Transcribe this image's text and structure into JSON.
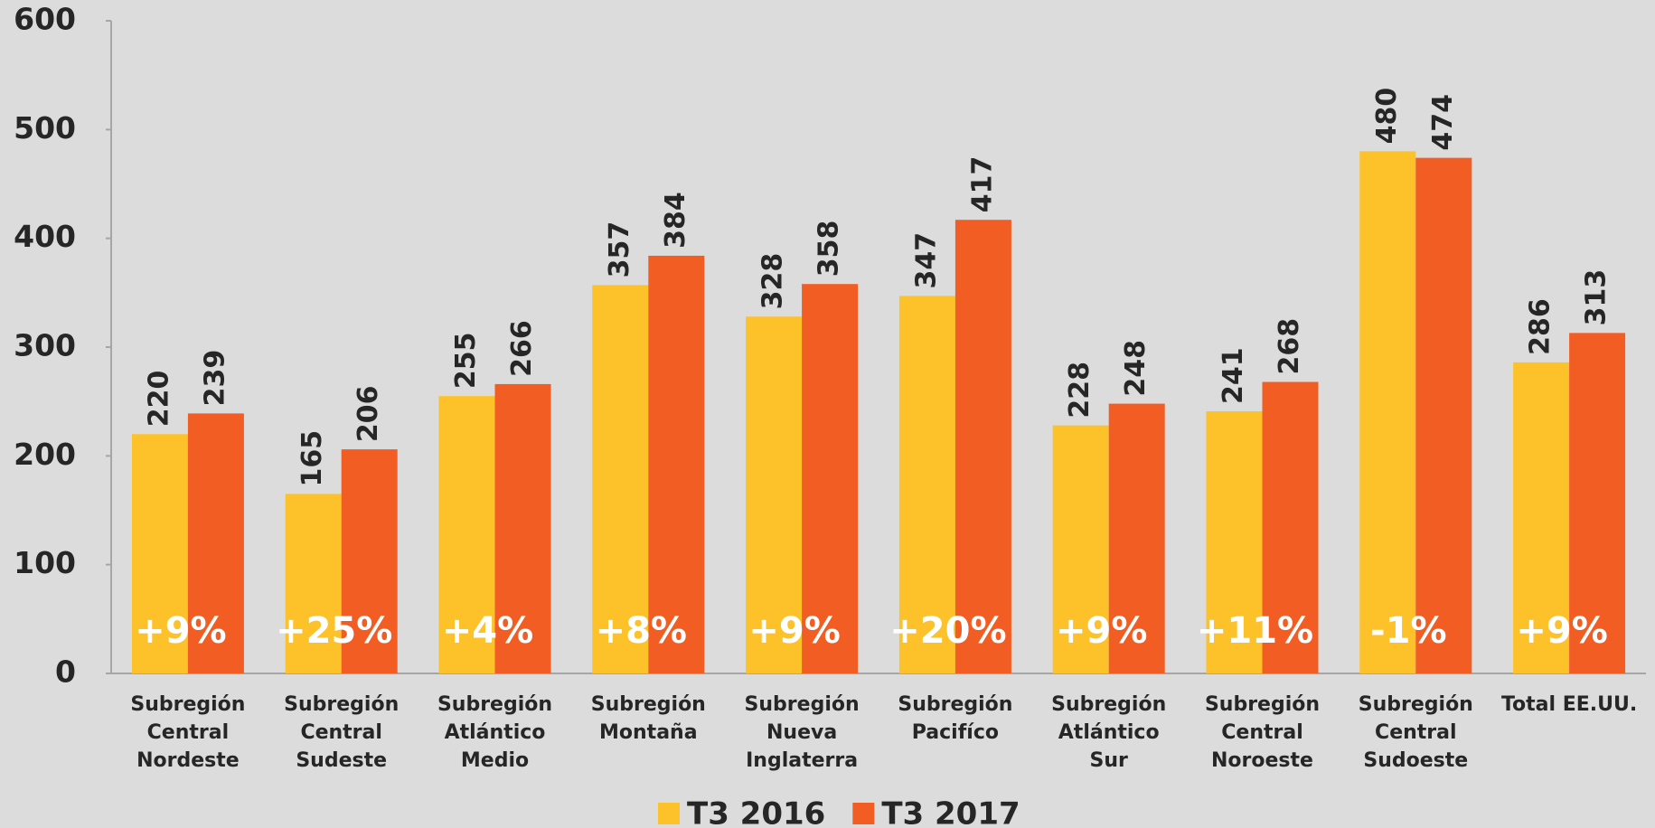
{
  "chart_data": {
    "type": "bar",
    "categories": [
      "Subregión\nCentral\nNordeste",
      "Subregión\nCentral\nSudeste",
      "Subregión\nAtlántico\nMedio",
      "Subregión\nMontaña",
      "Subregión\nNueva\nInglaterra",
      "Subregión\nPacifíco",
      "Subregión\nAtlántico\nSur",
      "Subregión\nCentral\nNoroeste",
      "Subregión\nCentral\nSudoeste",
      "Total EE.UU."
    ],
    "series": [
      {
        "name": "T3 2016",
        "color": "#FDC12A",
        "values": [
          220,
          165,
          255,
          357,
          328,
          347,
          228,
          241,
          480,
          286
        ]
      },
      {
        "name": "T3 2017",
        "color": "#F15D22",
        "values": [
          239,
          206,
          266,
          384,
          358,
          417,
          248,
          268,
          474,
          313
        ]
      }
    ],
    "annotations": [
      "+9%",
      "+25%",
      "+4%",
      "+8%",
      "+9%",
      "+20%",
      "+9%",
      "+11%",
      "-1%",
      "+9%"
    ],
    "ylim": [
      0,
      600
    ],
    "yticks": [
      0,
      100,
      200,
      300,
      400,
      500,
      600
    ],
    "legend": "bottom"
  }
}
